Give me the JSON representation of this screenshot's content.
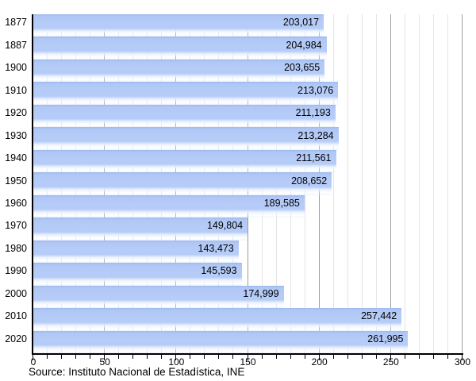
{
  "chart_data": {
    "type": "bar",
    "orientation": "horizontal",
    "title": "",
    "xlabel": "",
    "ylabel": "",
    "categories": [
      "1877",
      "1887",
      "1900",
      "1910",
      "1920",
      "1930",
      "1940",
      "1950",
      "1960",
      "1970",
      "1980",
      "1990",
      "2000",
      "2010",
      "2020"
    ],
    "values": [
      203017,
      204984,
      203655,
      213076,
      211193,
      213284,
      211561,
      208652,
      189585,
      149804,
      143473,
      145593,
      174999,
      257442,
      261995
    ],
    "value_labels": [
      "203,017",
      "204,984",
      "203,655",
      "213,076",
      "211,193",
      "213,284",
      "211,561",
      "208,652",
      "189,585",
      "149,804",
      "143,473",
      "145,593",
      "174,999",
      "257,442",
      "261,995"
    ],
    "x_axis": {
      "min": 0,
      "max": 300,
      "minor_step": 10,
      "major_step": 50,
      "tick_labels": [
        "0",
        "50",
        "100",
        "150",
        "200",
        "250",
        "300"
      ],
      "scale_note": "axis in thousands"
    },
    "unit_divisor": 1000,
    "grid": {
      "vertical_minor": true,
      "vertical_major": true,
      "horizontal": false
    },
    "legend": null
  },
  "source_note": "Source: Instituto Nacional de Estadística, INE",
  "colors": {
    "bar_fill": "#b6ccf8",
    "bar_fill_top": "#9db8ee",
    "grid_minor": "#e4e4e4",
    "grid_major": "#9c9c9c",
    "axis": "#000000",
    "text": "#000000",
    "background": "#ffffff"
  }
}
